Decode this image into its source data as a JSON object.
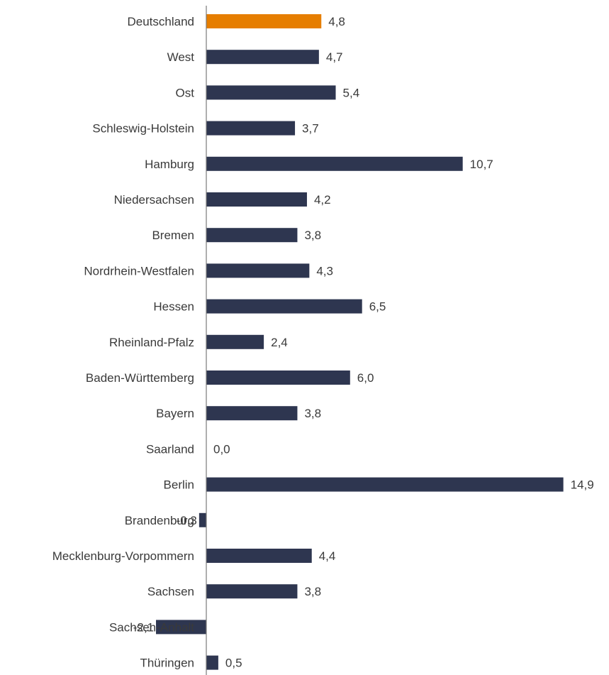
{
  "chart_data": {
    "type": "bar",
    "orientation": "horizontal",
    "categories": [
      "Deutschland",
      "West",
      "Ost",
      "Schleswig-Holstein",
      "Hamburg",
      "Niedersachsen",
      "Bremen",
      "Nordrhein-Westfalen",
      "Hessen",
      "Rheinland-Pfalz",
      "Baden-Württemberg",
      "Bayern",
      "Saarland",
      "Berlin",
      "Brandenburg",
      "Mecklenburg-Vorpommern",
      "Sachsen",
      "Sachsen-Anhalt",
      "Thüringen"
    ],
    "values": [
      4.8,
      4.7,
      5.4,
      3.7,
      10.7,
      4.2,
      3.8,
      4.3,
      6.5,
      2.4,
      6.0,
      3.8,
      0.0,
      14.9,
      -0.3,
      4.4,
      3.8,
      -2.1,
      0.5
    ],
    "value_labels": [
      "4,8",
      "4,7",
      "5,4",
      "3,7",
      "10,7",
      "4,2",
      "3,8",
      "4,3",
      "6,5",
      "2,4",
      "6,0",
      "3,8",
      "0,0",
      "14,9",
      "-0,3",
      "4,4",
      "3,8",
      "-2,1",
      "0,5"
    ],
    "highlight_index": 0,
    "colors": {
      "highlight": "#E67E00",
      "default": "#2E3650",
      "axis": "#7a7a7a",
      "text": "#3a3a3a"
    },
    "xlim": [
      -2.1,
      14.9
    ],
    "grid": false,
    "legend": "none"
  }
}
